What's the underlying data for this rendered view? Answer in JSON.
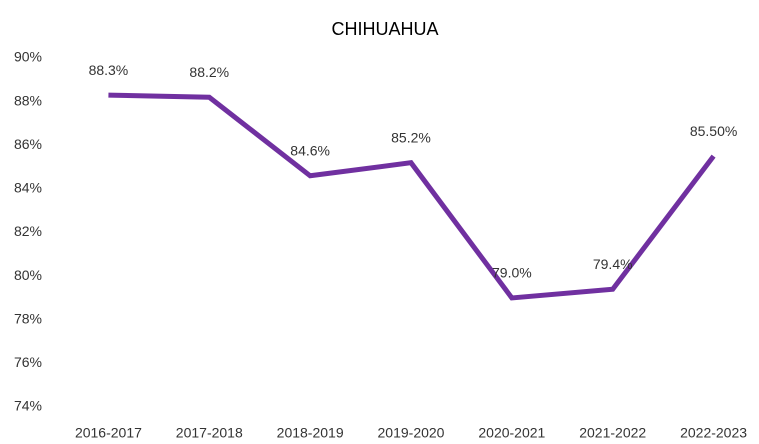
{
  "chart_data": {
    "type": "line",
    "title": "CHIHUAHUA",
    "categories": [
      "2016-2017",
      "2017-2018",
      "2018-2019",
      "2019-2020",
      "2020-2021",
      "2021-2022",
      "2022-2023"
    ],
    "values": [
      88.3,
      88.2,
      84.6,
      85.2,
      79.0,
      79.4,
      85.5
    ],
    "value_labels": [
      "88.3%",
      "88.2%",
      "84.6%",
      "85.2%",
      "79.0%",
      "79.4%",
      "85.50%"
    ],
    "color": "#7030a0",
    "ylim": [
      74,
      90
    ],
    "yticks": [
      {
        "value": 74,
        "label": "74%"
      },
      {
        "value": 76,
        "label": "76%"
      },
      {
        "value": 78,
        "label": "78%"
      },
      {
        "value": 80,
        "label": "80%"
      },
      {
        "value": 82,
        "label": "82%"
      },
      {
        "value": 84,
        "label": "84%"
      },
      {
        "value": 86,
        "label": "86%"
      },
      {
        "value": 88,
        "label": "88%"
      },
      {
        "value": 90,
        "label": "90%"
      }
    ],
    "grid": false
  }
}
